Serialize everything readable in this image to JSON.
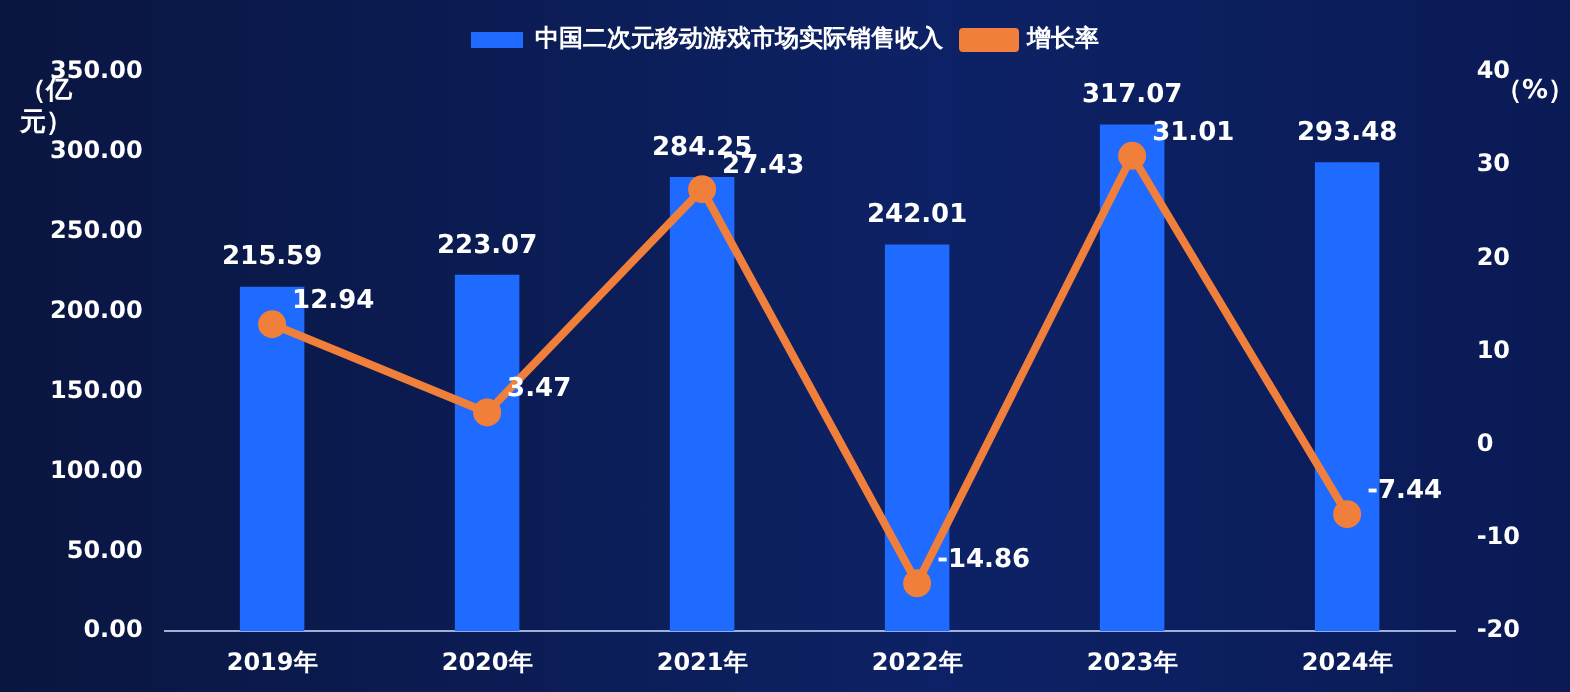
{
  "chart_data": {
    "type": "bar",
    "categories": [
      "2019年",
      "2020年",
      "2021年",
      "2022年",
      "2023年",
      "2024年"
    ],
    "series": [
      {
        "name": "中国二次元移动游戏市场实际销售收入",
        "color": "#1f6bff",
        "values": [
          215.59,
          223.07,
          284.25,
          242.01,
          317.07,
          293.48
        ]
      },
      {
        "name": "增长率",
        "type": "line",
        "axis": "y2",
        "color": "#ef7f3a",
        "values": [
          12.94,
          3.47,
          27.43,
          -14.86,
          31.01,
          -7.44
        ]
      }
    ],
    "ylabel": "（亿元）",
    "y2label": "（%）",
    "ylim": [
      0,
      350
    ],
    "yticks": [
      {
        "value": 0,
        "label": "0.00"
      },
      {
        "value": 50,
        "label": "50.00"
      },
      {
        "value": 100,
        "label": "100.00"
      },
      {
        "value": 150,
        "label": "150.00"
      },
      {
        "value": 200,
        "label": "200.00"
      },
      {
        "value": 250,
        "label": "250.00"
      },
      {
        "value": 300,
        "label": "300.00"
      },
      {
        "value": 350,
        "label": "350.00"
      }
    ],
    "y2lim": [
      -20,
      40
    ],
    "y2ticks": [
      -20,
      -10,
      0,
      10,
      20,
      30,
      40
    ],
    "grid": false,
    "legend": "top",
    "marker": "circle",
    "data_labels": true
  }
}
